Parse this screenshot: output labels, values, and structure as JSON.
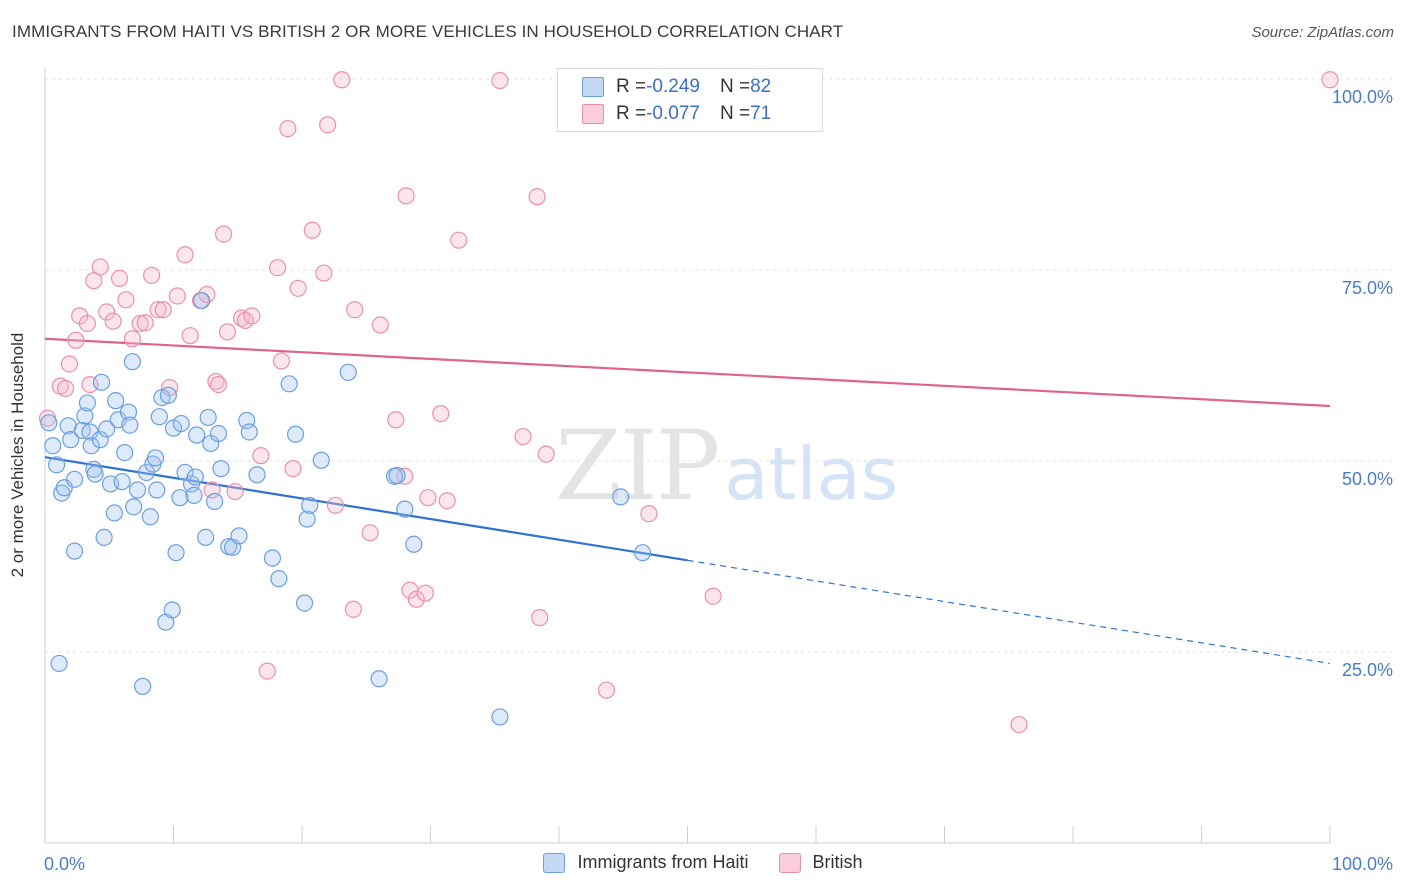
{
  "title": "IMMIGRANTS FROM HAITI VS BRITISH 2 OR MORE VEHICLES IN HOUSEHOLD CORRELATION CHART",
  "source": "Source: ZipAtlas.com",
  "watermark": {
    "zip": "ZIP",
    "atlas": "atlas"
  },
  "legend": {
    "haiti": {
      "r_label": "R = ",
      "r_value": "-0.249",
      "n_label": "N = ",
      "n_value": "82"
    },
    "british": {
      "r_label": "R = ",
      "r_value": "-0.077",
      "n_label": "N = ",
      "n_value": "71"
    }
  },
  "colors": {
    "haiti": "#6a9fe0",
    "haiti_line": "#2f72cf",
    "british": "#ec8fae",
    "british_line": "#e0638c"
  },
  "chart_data": {
    "type": "scatter",
    "title": "IMMIGRANTS FROM HAITI VS BRITISH 2 OR MORE VEHICLES IN HOUSEHOLD CORRELATION CHART",
    "xlabel": "",
    "ylabel": "2 or more Vehicles in Household",
    "xlim": [
      0,
      100
    ],
    "ylim": [
      0,
      100
    ],
    "x_ticks": [
      "0.0%",
      "100.0%"
    ],
    "y_ticks": [
      {
        "value": 25,
        "label": "25.0%"
      },
      {
        "value": 50,
        "label": "50.0%"
      },
      {
        "value": 75,
        "label": "75.0%"
      },
      {
        "value": 100,
        "label": "100.0%"
      }
    ],
    "grid": true,
    "legend_position": "top-center",
    "series": [
      {
        "name": "Immigrants from Haiti",
        "color": "#6a9fe0",
        "trend": {
          "x": [
            0,
            50
          ],
          "y": [
            50.5,
            37.0
          ],
          "dashed_to": [
            100,
            23.5
          ]
        },
        "points": [
          [
            0.3,
            55.0
          ],
          [
            0.6,
            52.0
          ],
          [
            0.9,
            49.5
          ],
          [
            1.1,
            23.5
          ],
          [
            1.3,
            45.8
          ],
          [
            1.5,
            46.5
          ],
          [
            1.8,
            54.6
          ],
          [
            2.0,
            52.8
          ],
          [
            2.3,
            38.2
          ],
          [
            2.3,
            47.6
          ],
          [
            2.9,
            54.0
          ],
          [
            3.1,
            55.9
          ],
          [
            3.3,
            57.6
          ],
          [
            3.5,
            53.8
          ],
          [
            3.6,
            52.0
          ],
          [
            3.8,
            48.9
          ],
          [
            3.9,
            48.3
          ],
          [
            4.3,
            52.8
          ],
          [
            4.4,
            60.3
          ],
          [
            4.6,
            40.0
          ],
          [
            4.8,
            54.2
          ],
          [
            5.1,
            47.0
          ],
          [
            5.4,
            43.2
          ],
          [
            5.5,
            57.9
          ],
          [
            5.7,
            55.4
          ],
          [
            6.0,
            47.3
          ],
          [
            6.2,
            51.1
          ],
          [
            6.5,
            56.4
          ],
          [
            6.6,
            54.7
          ],
          [
            6.9,
            44.0
          ],
          [
            7.2,
            46.2
          ],
          [
            7.6,
            20.5
          ],
          [
            7.9,
            48.5
          ],
          [
            8.2,
            42.7
          ],
          [
            8.4,
            49.6
          ],
          [
            8.6,
            50.4
          ],
          [
            8.7,
            46.2
          ],
          [
            8.9,
            55.8
          ],
          [
            9.1,
            58.3
          ],
          [
            9.4,
            28.9
          ],
          [
            9.6,
            58.6
          ],
          [
            9.9,
            30.5
          ],
          [
            10.0,
            54.3
          ],
          [
            10.2,
            38.0
          ],
          [
            10.5,
            45.2
          ],
          [
            10.6,
            54.9
          ],
          [
            10.9,
            48.5
          ],
          [
            11.4,
            47.0
          ],
          [
            11.6,
            45.5
          ],
          [
            11.7,
            47.9
          ],
          [
            11.8,
            53.4
          ],
          [
            12.2,
            71.0
          ],
          [
            12.5,
            40.0
          ],
          [
            12.7,
            55.7
          ],
          [
            12.9,
            52.3
          ],
          [
            13.2,
            44.7
          ],
          [
            13.5,
            53.6
          ],
          [
            13.7,
            49.0
          ],
          [
            14.3,
            38.8
          ],
          [
            14.6,
            38.7
          ],
          [
            15.1,
            40.2
          ],
          [
            15.7,
            55.3
          ],
          [
            15.9,
            53.8
          ],
          [
            16.5,
            48.2
          ],
          [
            17.7,
            37.3
          ],
          [
            18.2,
            34.6
          ],
          [
            19.0,
            60.1
          ],
          [
            19.5,
            53.5
          ],
          [
            20.2,
            31.4
          ],
          [
            20.4,
            42.4
          ],
          [
            21.5,
            50.1
          ],
          [
            23.6,
            61.6
          ],
          [
            26.0,
            21.5
          ],
          [
            27.2,
            48.0
          ],
          [
            27.4,
            48.1
          ],
          [
            28.0,
            43.7
          ],
          [
            28.7,
            39.1
          ],
          [
            35.4,
            16.5
          ],
          [
            44.8,
            45.3
          ],
          [
            46.5,
            38.0
          ],
          [
            20.6,
            44.2
          ],
          [
            6.8,
            63.0
          ]
        ]
      },
      {
        "name": "British",
        "color": "#ec8fae",
        "trend": {
          "x": [
            0,
            100
          ],
          "y": [
            66.0,
            57.2
          ]
        },
        "points": [
          [
            0.2,
            55.6
          ],
          [
            1.2,
            59.8
          ],
          [
            1.6,
            59.5
          ],
          [
            1.9,
            62.7
          ],
          [
            2.4,
            65.8
          ],
          [
            2.7,
            69.0
          ],
          [
            3.3,
            68.0
          ],
          [
            3.8,
            73.6
          ],
          [
            4.3,
            75.4
          ],
          [
            4.8,
            69.5
          ],
          [
            5.3,
            68.3
          ],
          [
            5.8,
            73.9
          ],
          [
            6.3,
            71.1
          ],
          [
            6.8,
            66.0
          ],
          [
            7.4,
            68.0
          ],
          [
            7.8,
            68.1
          ],
          [
            8.3,
            74.3
          ],
          [
            8.8,
            69.8
          ],
          [
            9.2,
            69.8
          ],
          [
            9.7,
            59.6
          ],
          [
            10.3,
            71.6
          ],
          [
            10.9,
            77.0
          ],
          [
            11.3,
            66.4
          ],
          [
            12.1,
            71.0
          ],
          [
            12.6,
            71.8
          ],
          [
            13.3,
            60.4
          ],
          [
            13.5,
            60.0
          ],
          [
            13.9,
            79.7
          ],
          [
            14.2,
            66.9
          ],
          [
            14.8,
            46.0
          ],
          [
            15.3,
            68.7
          ],
          [
            15.6,
            68.4
          ],
          [
            16.1,
            69.0
          ],
          [
            16.8,
            50.7
          ],
          [
            17.3,
            22.5
          ],
          [
            18.1,
            75.3
          ],
          [
            18.4,
            63.1
          ],
          [
            18.9,
            93.5
          ],
          [
            19.3,
            49.0
          ],
          [
            19.7,
            72.6
          ],
          [
            20.8,
            80.2
          ],
          [
            21.7,
            74.6
          ],
          [
            22.6,
            44.2
          ],
          [
            23.1,
            99.9
          ],
          [
            24.0,
            30.6
          ],
          [
            24.1,
            69.8
          ],
          [
            25.3,
            40.6
          ],
          [
            26.1,
            67.8
          ],
          [
            27.3,
            55.4
          ],
          [
            28.0,
            48.0
          ],
          [
            28.1,
            84.7
          ],
          [
            28.4,
            33.1
          ],
          [
            28.9,
            31.9
          ],
          [
            29.6,
            32.7
          ],
          [
            29.8,
            45.2
          ],
          [
            30.8,
            56.2
          ],
          [
            31.3,
            44.8
          ],
          [
            32.2,
            78.9
          ],
          [
            35.4,
            99.8
          ],
          [
            37.2,
            53.2
          ],
          [
            38.3,
            84.6
          ],
          [
            38.5,
            29.5
          ],
          [
            39.0,
            50.9
          ],
          [
            43.7,
            20.0
          ],
          [
            47.0,
            43.1
          ],
          [
            52.0,
            32.3
          ],
          [
            75.8,
            15.5
          ],
          [
            100.0,
            99.9
          ],
          [
            22.0,
            94.0
          ],
          [
            3.5,
            60.0
          ],
          [
            13.0,
            46.2
          ]
        ]
      }
    ]
  },
  "bottom_legend": [
    "Immigrants from Haiti",
    "British"
  ]
}
